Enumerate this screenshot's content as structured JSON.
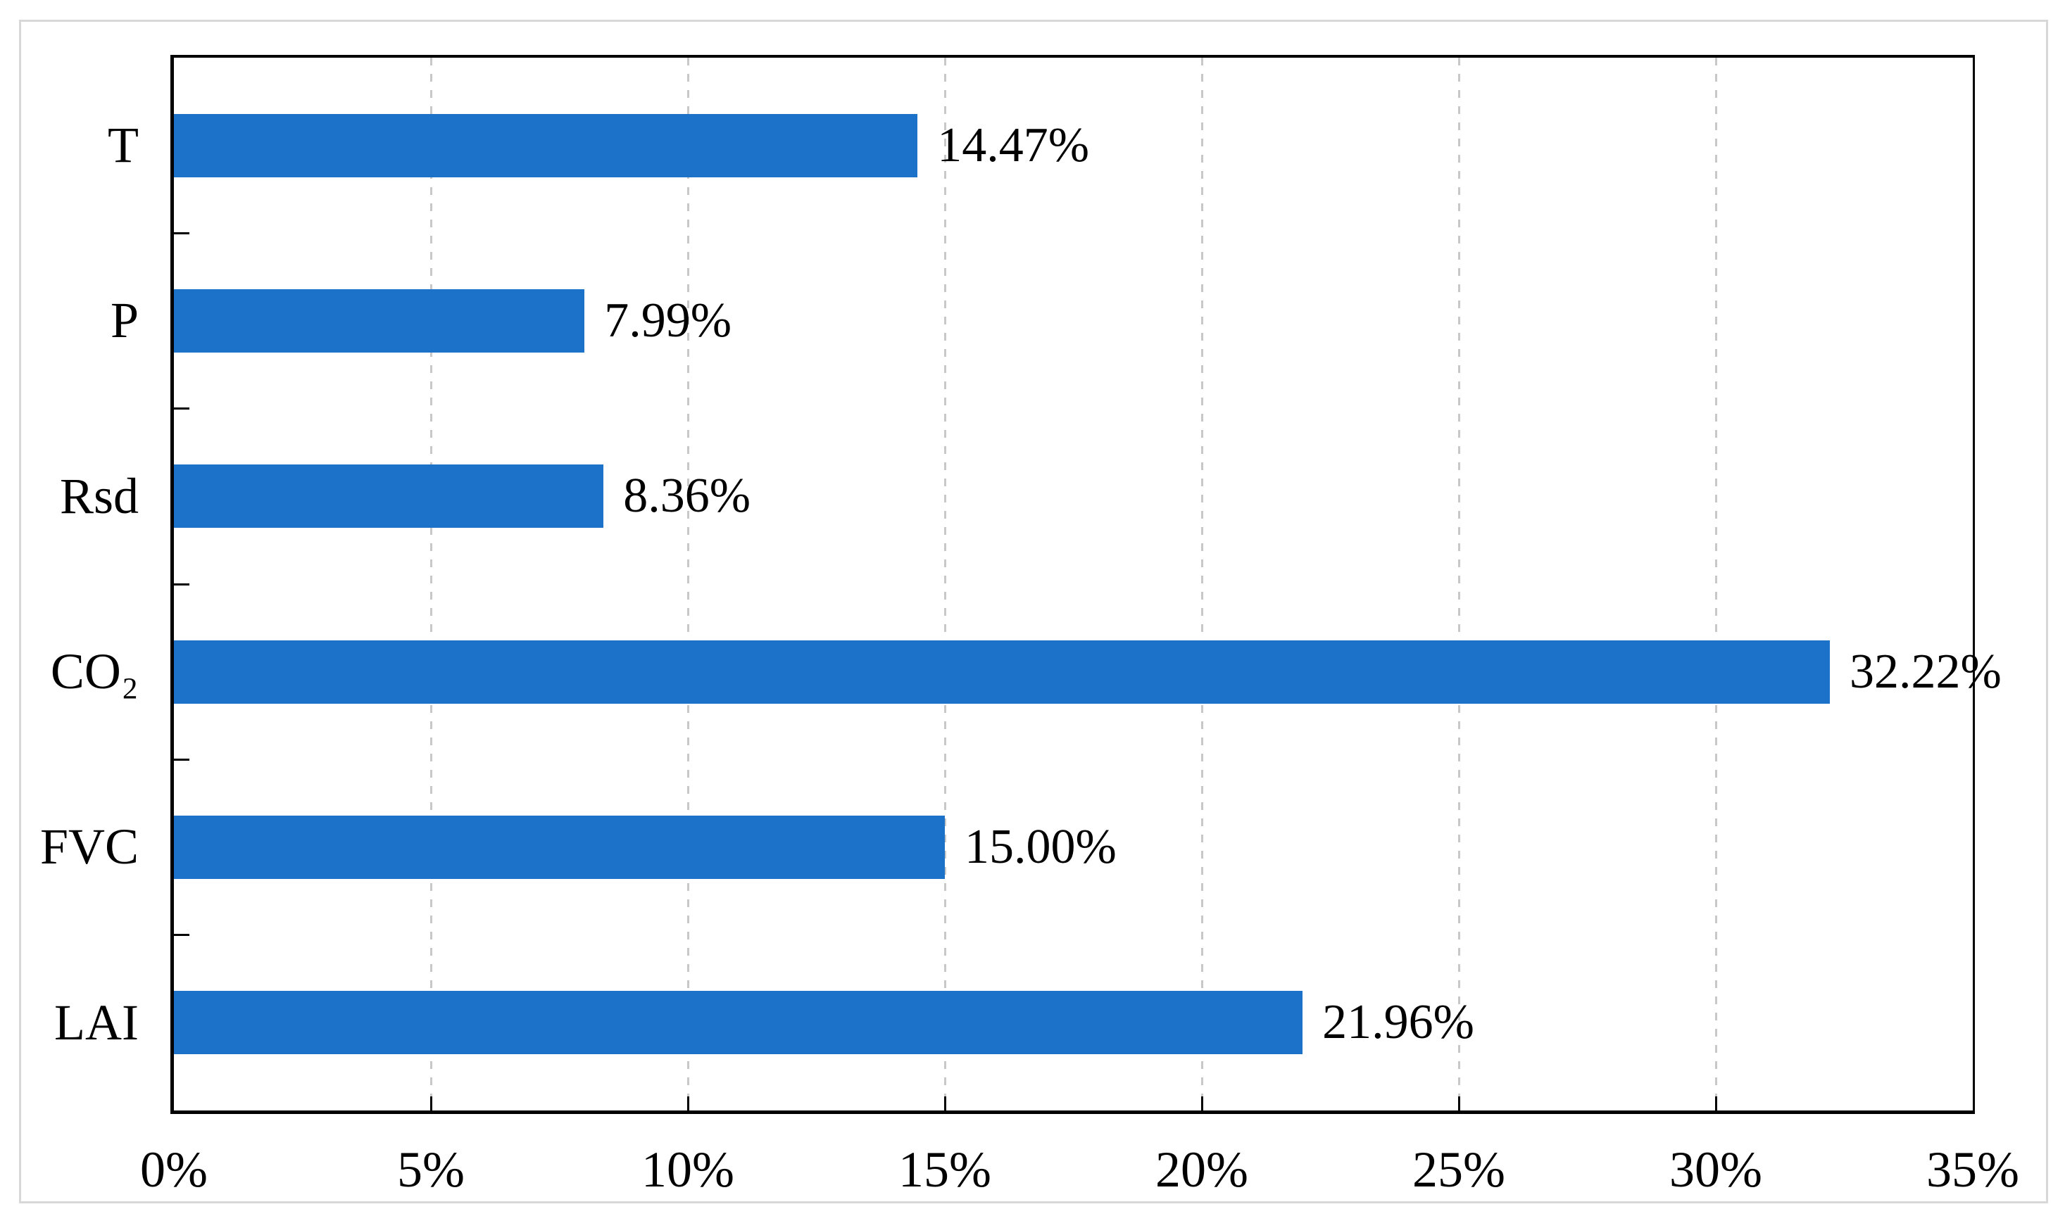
{
  "figure": {
    "background_color": "#ffffff",
    "frame_border_color": "#d8d8d8"
  },
  "chart_data": {
    "type": "bar",
    "orientation": "horizontal",
    "title": "",
    "xlabel": "",
    "ylabel": "",
    "categories": [
      "T",
      "P",
      "Rsd",
      "CO₂",
      "FVC",
      "LAI"
    ],
    "values": [
      14.47,
      7.99,
      8.36,
      32.22,
      15.0,
      21.96
    ],
    "data_labels": [
      "14.47%",
      "7.99%",
      "8.36%",
      "32.22%",
      "15.00%",
      "21.96%"
    ],
    "xlim": [
      0,
      35
    ],
    "x_ticks": [
      0,
      5,
      10,
      15,
      20,
      25,
      30,
      35
    ],
    "x_tick_labels": [
      "0%",
      "5%",
      "10%",
      "15%",
      "20%",
      "25%",
      "30%",
      "35%"
    ],
    "gridline_values": [
      5,
      10,
      15,
      20,
      25,
      30
    ],
    "grid": "vertical-dashed",
    "legend": "none",
    "bar_color": "#1b72c8",
    "gridline_color": "#c8c8c8",
    "axis_color": "#000000",
    "text_color": "#000000"
  }
}
